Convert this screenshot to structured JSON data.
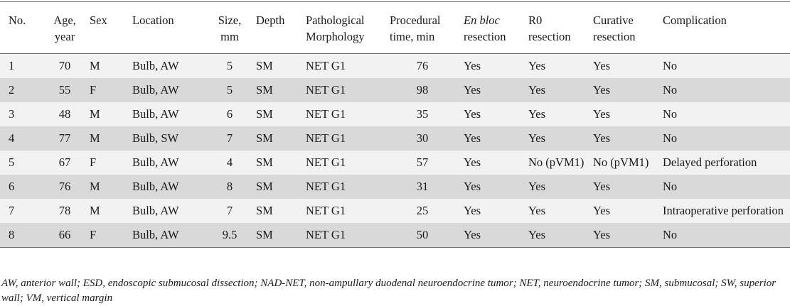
{
  "table": {
    "headers": {
      "no": "No.",
      "age": "Age, year",
      "sex": "Sex",
      "location": "Location",
      "size": "Size, mm",
      "depth": "Depth",
      "pathology": "Pathological Morphology",
      "time": "Procedural time, min",
      "enbloc_italic": "En bloc",
      "enbloc_rest": "resection",
      "r0": "R0 resection",
      "curative": "Curative resection",
      "complication": "Complication"
    },
    "rows": [
      {
        "no": "1",
        "age": "70",
        "sex": "M",
        "location": "Bulb, AW",
        "size": "5",
        "depth": "SM",
        "pathology": "NET G1",
        "time": "76",
        "enbloc": "Yes",
        "r0": "Yes",
        "curative": "Yes",
        "complication": "No"
      },
      {
        "no": "2",
        "age": "55",
        "sex": "F",
        "location": "Bulb, AW",
        "size": "5",
        "depth": "SM",
        "pathology": "NET G1",
        "time": "98",
        "enbloc": "Yes",
        "r0": "Yes",
        "curative": "Yes",
        "complication": "No"
      },
      {
        "no": "3",
        "age": "48",
        "sex": "M",
        "location": "Bulb, AW",
        "size": "6",
        "depth": "SM",
        "pathology": "NET G1",
        "time": "35",
        "enbloc": "Yes",
        "r0": "Yes",
        "curative": "Yes",
        "complication": "No"
      },
      {
        "no": "4",
        "age": "77",
        "sex": "M",
        "location": "Bulb, SW",
        "size": "7",
        "depth": "SM",
        "pathology": "NET G1",
        "time": "30",
        "enbloc": "Yes",
        "r0": "Yes",
        "curative": "Yes",
        "complication": "No"
      },
      {
        "no": "5",
        "age": "67",
        "sex": "F",
        "location": "Bulb, AW",
        "size": "4",
        "depth": "SM",
        "pathology": "NET G1",
        "time": "57",
        "enbloc": "Yes",
        "r0": "No (pVM1)",
        "curative": "No (pVM1)",
        "complication": "Delayed perforation"
      },
      {
        "no": "6",
        "age": "76",
        "sex": "M",
        "location": "Bulb, AW",
        "size": "8",
        "depth": "SM",
        "pathology": "NET G1",
        "time": "31",
        "enbloc": "Yes",
        "r0": "Yes",
        "curative": "Yes",
        "complication": "No"
      },
      {
        "no": "7",
        "age": "78",
        "sex": "M",
        "location": "Bulb, AW",
        "size": "7",
        "depth": "SM",
        "pathology": "NET G1",
        "time": "25",
        "enbloc": "Yes",
        "r0": "Yes",
        "curative": "Yes",
        "complication": "Intraoperative perforation"
      },
      {
        "no": "8",
        "age": "66",
        "sex": "F",
        "location": "Bulb, AW",
        "size": "9.5",
        "depth": "SM",
        "pathology": "NET G1",
        "time": "50",
        "enbloc": "Yes",
        "r0": "Yes",
        "curative": "Yes",
        "complication": "No"
      }
    ]
  },
  "footnote": "AW, anterior wall; ESD, endoscopic submucosal dissection; NAD-NET, non-ampullary duodenal neuroendocrine tumor; NET, neuroendocrine tumor; SM, submucosal; SW, superior wall; VM, vertical margin"
}
